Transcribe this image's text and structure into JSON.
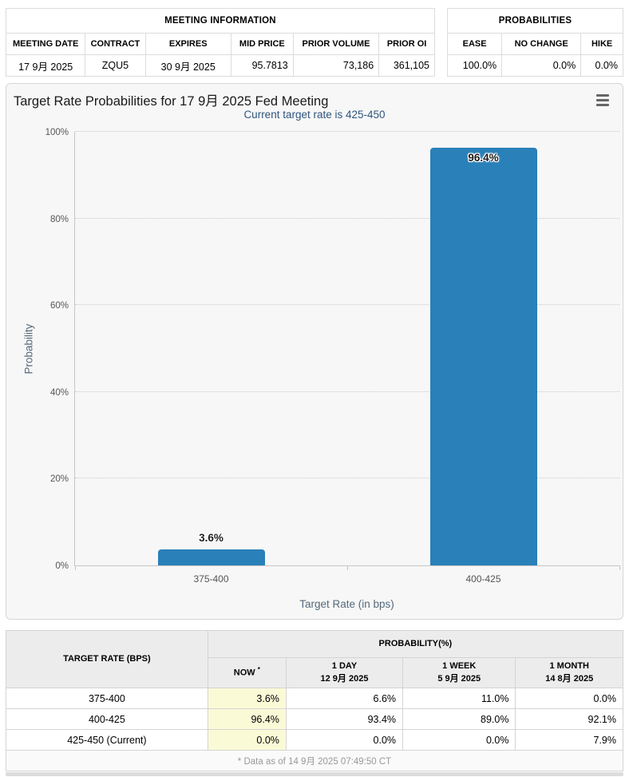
{
  "meeting_information": {
    "title": "MEETING INFORMATION",
    "columns": [
      "MEETING DATE",
      "CONTRACT",
      "EXPIRES",
      "MID PRICE",
      "PRIOR VOLUME",
      "PRIOR OI"
    ],
    "values": [
      "17 9月 2025",
      "ZQU5",
      "30 9月 2025",
      "95.7813",
      "73,186",
      "361,105"
    ]
  },
  "probabilities_summary": {
    "title": "PROBABILITIES",
    "columns": [
      "EASE",
      "NO CHANGE",
      "HIKE"
    ],
    "values": [
      "100.0%",
      "0.0%",
      "0.0%"
    ]
  },
  "chart": {
    "title": "Target Rate Probabilities for 17 9月 2025 Fed Meeting",
    "subtitle": "Current target rate is 425-450",
    "menu_icon": "hamburger-icon"
  },
  "chart_data": {
    "type": "bar",
    "categories": [
      "375-400",
      "400-425"
    ],
    "values": [
      3.6,
      96.4
    ],
    "labels": [
      "3.6%",
      "96.4%"
    ],
    "title": "Target Rate Probabilities for 17 9月 2025 Fed Meeting",
    "subtitle": "Current target rate is 425-450",
    "xlabel": "Target Rate (in bps)",
    "ylabel": "Probability",
    "ylim": [
      0,
      100
    ],
    "yticks": [
      "0%",
      "20%",
      "40%",
      "60%",
      "80%",
      "100%"
    ],
    "grid": "dotted horizontal",
    "legend": "none",
    "bar_color": "#2a80b9"
  },
  "probability_table": {
    "corner_header": "TARGET RATE (BPS)",
    "group_header": "PROBABILITY(%)",
    "sub_headers": [
      {
        "line1": "NOW",
        "sup": "*",
        "line2": ""
      },
      {
        "line1": "1 DAY",
        "sup": "",
        "line2": "12 9月 2025"
      },
      {
        "line1": "1 WEEK",
        "sup": "",
        "line2": "5 9月 2025"
      },
      {
        "line1": "1 MONTH",
        "sup": "",
        "line2": "14 8月 2025"
      }
    ],
    "rows": [
      {
        "rate": "375-400",
        "now": "3.6%",
        "day1": "6.6%",
        "week1": "11.0%",
        "month1": "0.0%"
      },
      {
        "rate": "400-425",
        "now": "96.4%",
        "day1": "93.4%",
        "week1": "89.0%",
        "month1": "92.1%"
      },
      {
        "rate": "425-450 (Current)",
        "now": "0.0%",
        "day1": "0.0%",
        "week1": "0.0%",
        "month1": "7.9%"
      }
    ],
    "footnote": "* Data as of 14 9月 2025 07:49:50 CT"
  },
  "colors": {
    "bar": "#2a80b9",
    "subtitle_text": "#30557e",
    "now_column_highlight": "#fafad7",
    "table_header_bg": "#ececec",
    "chart_background": "#f7f7f7"
  }
}
